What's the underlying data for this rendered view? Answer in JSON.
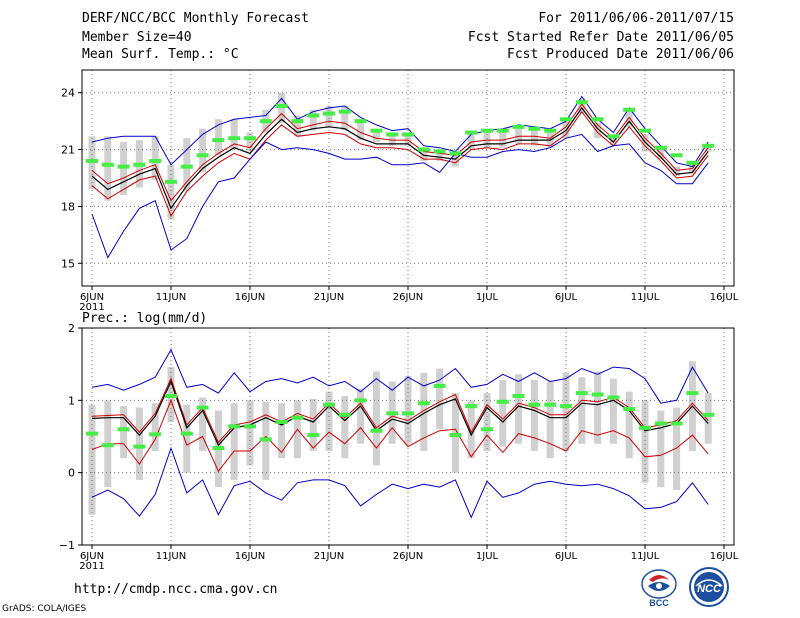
{
  "header": {
    "title": "DERF/NCC/BCC Monthly Forecast",
    "member_size": "Member Size=40",
    "variable": "Mean Surf. Temp.: °C",
    "period": "For 2011/06/06-2011/07/15",
    "fcst_started": "Fcst Started Refer Date 2011/06/05",
    "fcst_produced": "Fcst Produced Date 2011/06/06"
  },
  "footer": {
    "url": "http://cmdp.ncc.cma.gov.cn",
    "grads": "GrADS: COLA/IGES",
    "logo_bcc_text": "BCC",
    "logo_ncc_text": "NCC"
  },
  "colors": {
    "envelope": "#0000cc",
    "spread": "#cc0000",
    "mean": "#000000",
    "obs": "#44ee44",
    "box": "#d0d0d0"
  },
  "chart_data": [
    {
      "type": "line",
      "title": "Mean Surf. Temp.: °C",
      "x_tick_labels": [
        "6JUN",
        "11JUN",
        "16JUN",
        "21JUN",
        "26JUN",
        "1JUL",
        "6JUL",
        "11JUL",
        "16JUL"
      ],
      "x_year_label": "2011",
      "y_ticks": [
        "15",
        "18",
        "21",
        "24"
      ],
      "ylim": [
        13.8,
        25.2
      ],
      "ytick_values": [
        15,
        18,
        21,
        24
      ],
      "n_days": 40,
      "series": [
        {
          "name": "max",
          "values": [
            21.4,
            21.6,
            21.7,
            21.7,
            21.7,
            20.2,
            21.0,
            21.8,
            22.3,
            22.6,
            22.7,
            22.8,
            23.7,
            22.6,
            23.0,
            23.2,
            23.3,
            22.7,
            22.3,
            22.0,
            22.1,
            21.2,
            21.1,
            20.9,
            21.8,
            22.0,
            22.1,
            22.3,
            22.2,
            22.1,
            22.5,
            23.8,
            22.6,
            21.9,
            23.2,
            22.1,
            21.2,
            20.3,
            20.1,
            21.4
          ]
        },
        {
          "name": "upper",
          "values": [
            19.9,
            19.2,
            19.5,
            19.9,
            20.2,
            18.3,
            19.3,
            20.2,
            20.8,
            21.3,
            21.1,
            22.1,
            22.9,
            22.1,
            22.3,
            22.5,
            22.4,
            21.9,
            21.6,
            21.5,
            21.5,
            20.9,
            20.8,
            20.7,
            21.4,
            21.5,
            21.5,
            21.7,
            21.7,
            21.6,
            22.2,
            23.4,
            22.3,
            21.6,
            22.7,
            21.6,
            20.8,
            19.9,
            20.0,
            21.1
          ]
        },
        {
          "name": "mean",
          "values": [
            19.6,
            18.9,
            19.3,
            19.7,
            20.0,
            17.9,
            19.1,
            20.0,
            20.6,
            21.1,
            20.8,
            21.8,
            22.6,
            21.9,
            22.1,
            22.2,
            22.1,
            21.6,
            21.3,
            21.3,
            21.3,
            20.7,
            20.6,
            20.5,
            21.2,
            21.3,
            21.3,
            21.5,
            21.5,
            21.5,
            22.0,
            23.2,
            22.1,
            21.4,
            22.5,
            21.4,
            20.6,
            19.7,
            19.8,
            20.9
          ]
        },
        {
          "name": "lower",
          "values": [
            19.1,
            18.4,
            18.9,
            19.4,
            19.6,
            17.5,
            18.8,
            19.6,
            20.3,
            20.8,
            20.5,
            21.5,
            22.3,
            21.7,
            21.8,
            21.9,
            21.8,
            21.3,
            21.1,
            21.1,
            21.0,
            20.5,
            20.5,
            20.3,
            21.0,
            21.1,
            21.0,
            21.3,
            21.3,
            21.2,
            21.8,
            23.0,
            21.9,
            21.2,
            22.2,
            21.2,
            20.4,
            19.5,
            19.6,
            20.7
          ]
        },
        {
          "name": "min",
          "values": [
            17.6,
            15.3,
            16.7,
            17.9,
            18.3,
            15.7,
            16.3,
            18.0,
            19.3,
            19.5,
            20.5,
            21.4,
            21.0,
            21.1,
            21.0,
            20.8,
            20.5,
            20.5,
            20.6,
            20.2,
            20.2,
            20.3,
            19.8,
            20.8,
            20.6,
            20.6,
            20.9,
            21.0,
            20.9,
            21.1,
            21.6,
            21.8,
            20.9,
            21.2,
            21.3,
            20.3,
            19.9,
            19.2,
            19.2,
            20.3
          ]
        },
        {
          "name": "observed",
          "values": [
            20.4,
            20.2,
            20.1,
            20.2,
            20.4,
            19.3,
            20.1,
            20.7,
            21.5,
            21.6,
            21.6,
            22.5,
            23.3,
            22.5,
            22.8,
            22.9,
            23.0,
            22.5,
            22.0,
            21.8,
            21.8,
            21.0,
            20.9,
            20.8,
            21.9,
            22.0,
            22.0,
            22.2,
            22.1,
            22.0,
            22.6,
            23.5,
            22.6,
            21.7,
            23.1,
            22.0,
            21.1,
            20.7,
            20.3,
            21.2
          ]
        }
      ],
      "box_ranges": [
        [
          18.9,
          21.7
        ],
        [
          18.3,
          21.7
        ],
        [
          18.6,
          21.4
        ],
        [
          19.0,
          21.5
        ],
        [
          19.4,
          21.7
        ],
        [
          17.3,
          20.2
        ],
        [
          18.8,
          21.6
        ],
        [
          19.8,
          22.1
        ],
        [
          20.7,
          22.6
        ],
        [
          21.0,
          22.6
        ],
        [
          20.9,
          21.9
        ],
        [
          21.9,
          23.1
        ],
        [
          22.4,
          24.0
        ],
        [
          21.7,
          22.8
        ],
        [
          22.0,
          23.1
        ],
        [
          22.2,
          23.3
        ],
        [
          22.0,
          23.3
        ],
        [
          21.5,
          22.6
        ],
        [
          21.4,
          22.0
        ],
        [
          21.2,
          21.9
        ],
        [
          21.2,
          21.9
        ],
        [
          20.4,
          21.1
        ],
        [
          20.4,
          21.0
        ],
        [
          20.1,
          20.9
        ],
        [
          21.0,
          21.8
        ],
        [
          21.1,
          21.9
        ],
        [
          21.1,
          22.0
        ],
        [
          21.3,
          22.2
        ],
        [
          21.2,
          22.1
        ],
        [
          21.1,
          22.0
        ],
        [
          21.6,
          22.6
        ],
        [
          22.9,
          23.7
        ],
        [
          21.6,
          22.4
        ],
        [
          21.2,
          21.8
        ],
        [
          22.2,
          23.0
        ],
        [
          20.9,
          21.8
        ],
        [
          20.5,
          21.0
        ],
        [
          19.6,
          20.1
        ],
        [
          19.7,
          20.3
        ],
        [
          20.9,
          21.3
        ]
      ]
    },
    {
      "type": "line",
      "title": "Prec.: log(mm/d)",
      "x_tick_labels": [
        "6JUN",
        "11JUN",
        "16JUN",
        "21JUN",
        "26JUN",
        "1JUL",
        "6JUL",
        "11JUL",
        "16JUL"
      ],
      "x_year_label": "2011",
      "y_ticks": [
        "−1",
        "0",
        "1",
        "2"
      ],
      "ylim": [
        -1,
        2
      ],
      "ytick_values": [
        -1,
        0,
        1,
        2
      ],
      "n_days": 40,
      "series": [
        {
          "name": "max",
          "values": [
            1.18,
            1.22,
            1.14,
            1.22,
            1.32,
            1.7,
            1.18,
            1.22,
            1.1,
            1.38,
            1.12,
            1.26,
            1.3,
            1.24,
            1.32,
            1.2,
            1.26,
            1.12,
            1.3,
            1.14,
            1.32,
            1.2,
            1.28,
            1.44,
            1.18,
            1.22,
            1.36,
            1.26,
            1.38,
            1.26,
            1.3,
            1.44,
            1.36,
            1.46,
            1.44,
            1.3,
            0.96,
            1.0,
            1.46,
            1.1
          ]
        },
        {
          "name": "upper",
          "values": [
            0.78,
            0.79,
            0.8,
            0.56,
            0.82,
            1.3,
            0.66,
            0.9,
            0.42,
            0.66,
            0.7,
            0.8,
            0.7,
            0.82,
            0.74,
            0.96,
            0.76,
            0.96,
            0.62,
            0.78,
            0.72,
            0.86,
            0.98,
            1.08,
            0.56,
            0.94,
            0.74,
            0.96,
            0.9,
            0.8,
            0.8,
            1.0,
            0.98,
            1.04,
            0.9,
            0.62,
            0.66,
            0.72,
            0.96,
            0.72
          ]
        },
        {
          "name": "mean",
          "values": [
            0.75,
            0.76,
            0.76,
            0.52,
            0.78,
            1.26,
            0.62,
            0.86,
            0.38,
            0.62,
            0.66,
            0.76,
            0.66,
            0.78,
            0.7,
            0.92,
            0.72,
            0.92,
            0.58,
            0.74,
            0.68,
            0.82,
            0.94,
            1.02,
            0.52,
            0.9,
            0.7,
            0.92,
            0.86,
            0.76,
            0.76,
            0.96,
            0.94,
            1.0,
            0.86,
            0.58,
            0.62,
            0.68,
            0.92,
            0.68
          ]
        },
        {
          "name": "spread",
          "values": [
            0.32,
            0.4,
            0.4,
            0.12,
            0.46,
            1.0,
            0.38,
            0.5,
            0.02,
            0.3,
            0.3,
            0.5,
            0.28,
            0.6,
            0.34,
            0.56,
            0.4,
            0.62,
            0.34,
            0.62,
            0.36,
            0.48,
            0.58,
            0.6,
            0.22,
            0.52,
            0.28,
            0.54,
            0.48,
            0.4,
            0.3,
            0.58,
            0.52,
            0.58,
            0.48,
            0.22,
            0.24,
            0.34,
            0.52,
            0.26
          ]
        },
        {
          "name": "min",
          "values": [
            -0.34,
            -0.24,
            -0.36,
            -0.6,
            -0.3,
            0.34,
            -0.28,
            -0.1,
            -0.58,
            -0.18,
            -0.12,
            -0.28,
            -0.38,
            -0.14,
            -0.1,
            -0.1,
            -0.18,
            -0.46,
            -0.3,
            -0.16,
            -0.22,
            -0.16,
            -0.2,
            -0.1,
            -0.62,
            -0.12,
            -0.34,
            -0.28,
            -0.16,
            -0.12,
            -0.16,
            -0.18,
            -0.16,
            -0.22,
            -0.32,
            -0.5,
            -0.48,
            -0.4,
            -0.14,
            -0.44
          ]
        },
        {
          "name": "observed",
          "values": [
            0.54,
            0.38,
            0.6,
            0.36,
            0.53,
            1.06,
            0.54,
            0.9,
            0.34,
            0.64,
            0.64,
            0.46,
            0.7,
            0.76,
            0.52,
            0.94,
            0.8,
            1.0,
            0.58,
            0.82,
            0.82,
            0.96,
            1.2,
            0.52,
            0.92,
            0.6,
            0.98,
            1.06,
            0.94,
            0.94,
            0.92,
            1.1,
            1.08,
            1.04,
            0.88,
            0.62,
            0.68,
            0.68,
            1.1,
            0.8
          ]
        }
      ],
      "box_ranges": [
        [
          -0.58,
          0.94
        ],
        [
          -0.2,
          1.0
        ],
        [
          0.2,
          0.92
        ],
        [
          -0.1,
          0.9
        ],
        [
          0.3,
          0.96
        ],
        [
          0.7,
          1.46
        ],
        [
          0.0,
          0.94
        ],
        [
          0.3,
          1.04
        ],
        [
          -0.2,
          0.86
        ],
        [
          -0.1,
          0.96
        ],
        [
          0.1,
          1.0
        ],
        [
          -0.1,
          0.98
        ],
        [
          0.2,
          0.96
        ],
        [
          0.2,
          1.0
        ],
        [
          0.3,
          1.02
        ],
        [
          0.3,
          1.12
        ],
        [
          0.2,
          1.06
        ],
        [
          0.4,
          1.16
        ],
        [
          0.1,
          1.4
        ],
        [
          0.4,
          1.26
        ],
        [
          0.4,
          1.34
        ],
        [
          0.3,
          1.38
        ],
        [
          0.6,
          1.44
        ],
        [
          0.0,
          1.1
        ],
        [
          0.2,
          1.0
        ],
        [
          0.3,
          1.1
        ],
        [
          0.36,
          1.28
        ],
        [
          0.4,
          1.36
        ],
        [
          0.3,
          1.28
        ],
        [
          0.2,
          1.26
        ],
        [
          0.3,
          1.38
        ],
        [
          0.4,
          1.32
        ],
        [
          0.4,
          1.4
        ],
        [
          0.4,
          1.3
        ],
        [
          0.2,
          1.12
        ],
        [
          -0.14,
          1.0
        ],
        [
          -0.2,
          0.86
        ],
        [
          -0.24,
          0.9
        ],
        [
          0.3,
          1.54
        ],
        [
          0.4,
          1.1
        ]
      ]
    }
  ]
}
